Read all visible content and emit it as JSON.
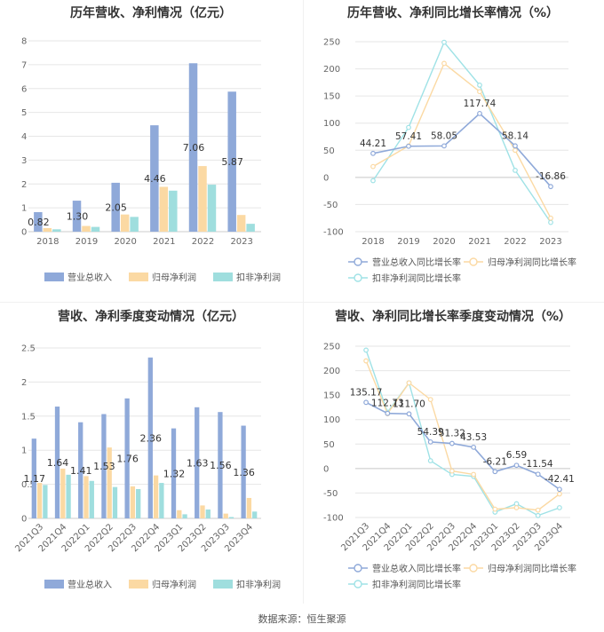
{
  "source": "数据来源：恒生聚源",
  "colors": {
    "revenue": "#8fa9d9",
    "netprofit": "#fbd9a3",
    "deducted": "#9fdede",
    "revenue_line": "#8fa9d9",
    "netprofit_line": "#fbd9a3",
    "deducted_line": "#9fe2e6"
  },
  "chart_data": [
    {
      "id": "annual_bar",
      "type": "bar",
      "title": "历年营收、净利情况（亿元）",
      "categories": [
        "2018",
        "2019",
        "2020",
        "2021",
        "2022",
        "2023"
      ],
      "ylim": [
        0,
        8
      ],
      "yticks": [
        0,
        1,
        2,
        3,
        4,
        5,
        6,
        7,
        8
      ],
      "series": [
        {
          "name": "营业总收入",
          "values": [
            0.82,
            1.3,
            2.05,
            4.46,
            7.06,
            5.87
          ],
          "labels": [
            "0.82",
            "1.30",
            "2.05",
            "4.46",
            "7.06",
            "5.87"
          ]
        },
        {
          "name": "归母净利润",
          "values": [
            0.15,
            0.24,
            0.72,
            1.88,
            2.75,
            0.7
          ]
        },
        {
          "name": "扣非净利润",
          "values": [
            0.1,
            0.2,
            0.62,
            1.72,
            1.97,
            0.33
          ]
        }
      ],
      "legend": "bottom"
    },
    {
      "id": "annual_line",
      "type": "line",
      "title": "历年营收、净利同比增长率情况（%）",
      "categories": [
        "2018",
        "2019",
        "2020",
        "2021",
        "2022",
        "2023"
      ],
      "ylim": [
        -100,
        250
      ],
      "yticks": [
        -100,
        -50,
        0,
        50,
        100,
        150,
        200,
        250
      ],
      "series": [
        {
          "name": "营业总收入同比增长率",
          "values": [
            44.21,
            57.41,
            58.05,
            117.74,
            58.14,
            -16.86
          ],
          "labels": [
            "44.21",
            "57.41",
            "58.05",
            "117.74",
            "58.14",
            "-16.86"
          ]
        },
        {
          "name": "归母净利润同比增长率",
          "values": [
            20,
            58,
            210,
            158,
            50,
            -75
          ]
        },
        {
          "name": "扣非净利润同比增长率",
          "values": [
            -6,
            92,
            249,
            170,
            13,
            -83
          ]
        }
      ],
      "legend": "bottom"
    },
    {
      "id": "quarter_bar",
      "type": "bar",
      "title": "营收、净利季度变动情况（亿元）",
      "categories": [
        "2021Q3",
        "2021Q4",
        "2022Q1",
        "2022Q2",
        "2022Q3",
        "2022Q4",
        "2023Q1",
        "2023Q2",
        "2023Q3",
        "2023Q4"
      ],
      "ylim": [
        0,
        2.5
      ],
      "yticks": [
        0,
        0.5,
        1,
        1.5,
        2,
        2.5
      ],
      "ytick_labels": [
        "0",
        "0.5",
        "1",
        "1.5",
        "2",
        "2.5"
      ],
      "series": [
        {
          "name": "营业总收入",
          "values": [
            1.17,
            1.64,
            1.41,
            1.53,
            1.76,
            2.36,
            1.32,
            1.63,
            1.56,
            1.36
          ],
          "labels": [
            "1.17",
            "1.64",
            "1.41",
            "1.53",
            "1.76",
            "2.36",
            "1.32",
            "1.63",
            "1.56",
            "1.36"
          ]
        },
        {
          "name": "归母净利润",
          "values": [
            0.52,
            0.73,
            0.62,
            1.04,
            0.47,
            0.63,
            0.12,
            0.19,
            0.07,
            0.3
          ]
        },
        {
          "name": "扣非净利润",
          "values": [
            0.49,
            0.64,
            0.55,
            0.46,
            0.43,
            0.52,
            0.06,
            0.13,
            0.02,
            0.1
          ]
        }
      ],
      "legend": "bottom"
    },
    {
      "id": "quarter_line",
      "type": "line",
      "title": "营收、净利同比增长率季度变动情况（%）",
      "categories": [
        "2021Q3",
        "2021Q4",
        "2022Q1",
        "2022Q2",
        "2022Q3",
        "2022Q4",
        "2023Q1",
        "2023Q2",
        "2023Q3",
        "2023Q4"
      ],
      "ylim": [
        -100,
        250
      ],
      "yticks": [
        -100,
        -50,
        0,
        50,
        100,
        150,
        200,
        250
      ],
      "series": [
        {
          "name": "营业总收入同比增长率",
          "values": [
            135.17,
            112.73,
            111.7,
            54.39,
            51.32,
            43.53,
            -6.21,
            6.59,
            -11.54,
            -42.41
          ],
          "labels": [
            "135.17",
            "112.73",
            "111.70",
            "54.39",
            "51.32",
            "43.53",
            "-6.21",
            "6.59",
            "-11.54",
            "-42.41"
          ]
        },
        {
          "name": "归母净利润同比增长率",
          "values": [
            220,
            112,
            175,
            141,
            -5,
            -12,
            -83,
            -80,
            -85,
            -52
          ]
        },
        {
          "name": "扣非净利润同比增长率",
          "values": [
            242,
            115,
            175,
            16,
            -12,
            -16,
            -89,
            -72,
            -96,
            -80
          ]
        }
      ],
      "legend": "bottom"
    }
  ]
}
